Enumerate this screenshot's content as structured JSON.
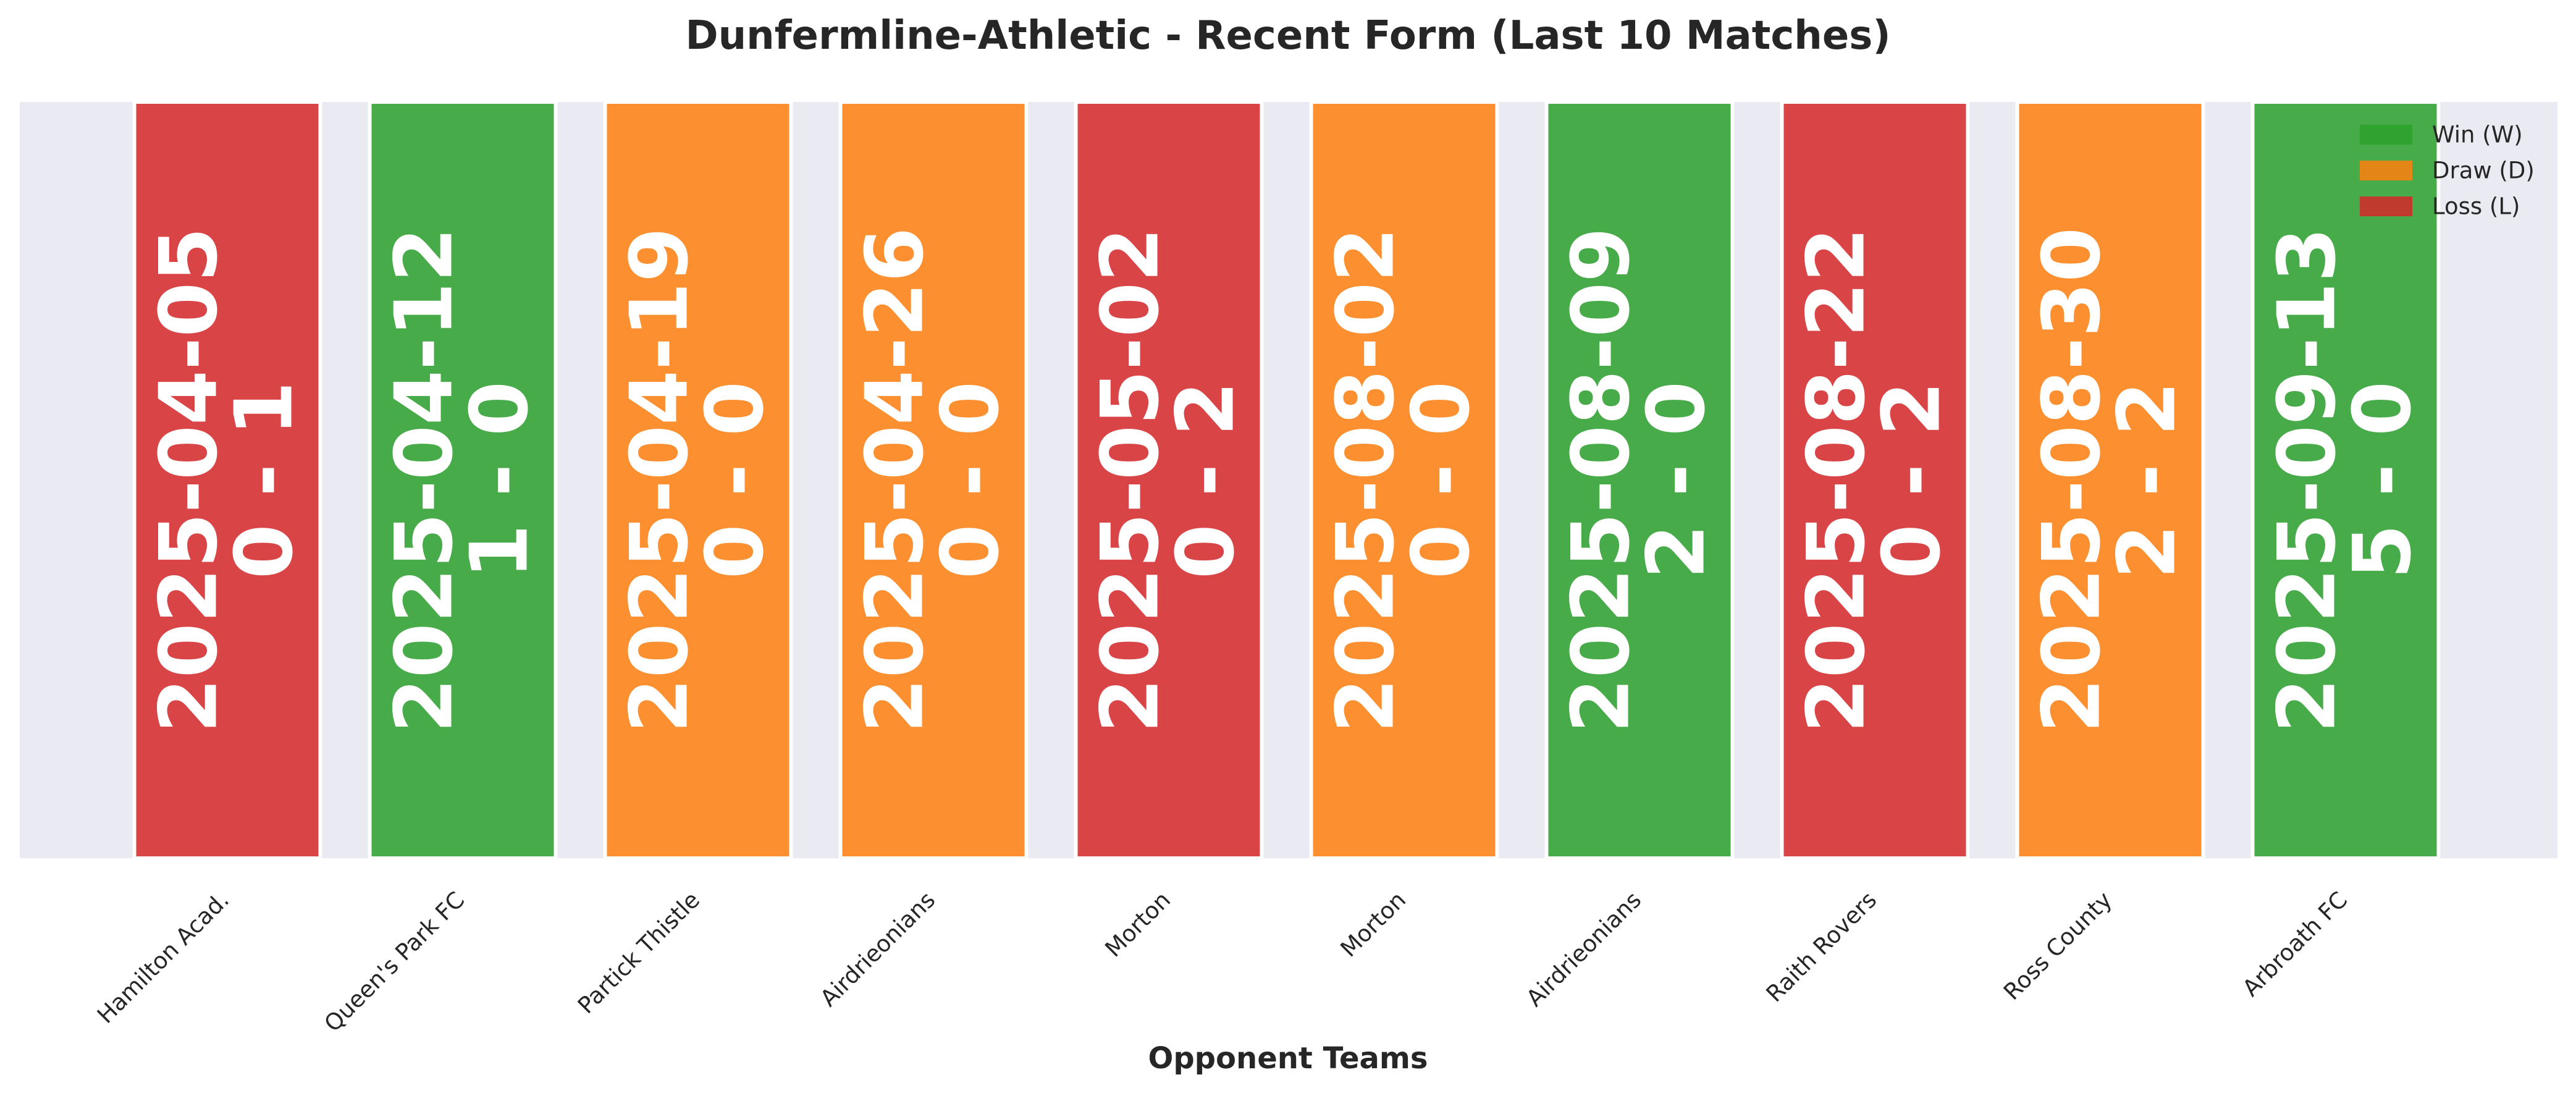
{
  "chart_data": {
    "type": "bar",
    "title": "Dunfermline-Athletic - Recent Form (Last 10 Matches)",
    "x_label": "Opponent Teams",
    "categories": [
      "Hamilton Acad.",
      "Queen's Park FC",
      "Partick Thistle",
      "Airdrieonians",
      "Morton",
      "Morton",
      "Airdrieonians",
      "Raith Rovers",
      "Ross County",
      "Arbroath FC"
    ],
    "dates": [
      "2025-04-05",
      "2025-04-12",
      "2025-04-19",
      "2025-04-26",
      "2025-05-02",
      "2025-08-02",
      "2025-08-09",
      "2025-08-22",
      "2025-08-30",
      "2025-09-13"
    ],
    "scores": [
      "0 - 1",
      "1 - 0",
      "0 - 0",
      "0 - 0",
      "0 - 2",
      "0 - 0",
      "2 - 0",
      "0 - 2",
      "2 - 2",
      "5 - 0"
    ],
    "results": [
      "Loss (L)",
      "Win (W)",
      "Draw (D)",
      "Draw (D)",
      "Loss (L)",
      "Draw (D)",
      "Win (W)",
      "Loss (L)",
      "Draw (D)",
      "Win (W)"
    ],
    "legend": [
      {
        "name": "Win (W)",
        "color": "#2ca02c"
      },
      {
        "name": "Draw (D)",
        "color": "#ff7f0e"
      },
      {
        "name": "Loss (L)",
        "color": "#d62728"
      }
    ],
    "legend_position": "upper right"
  }
}
